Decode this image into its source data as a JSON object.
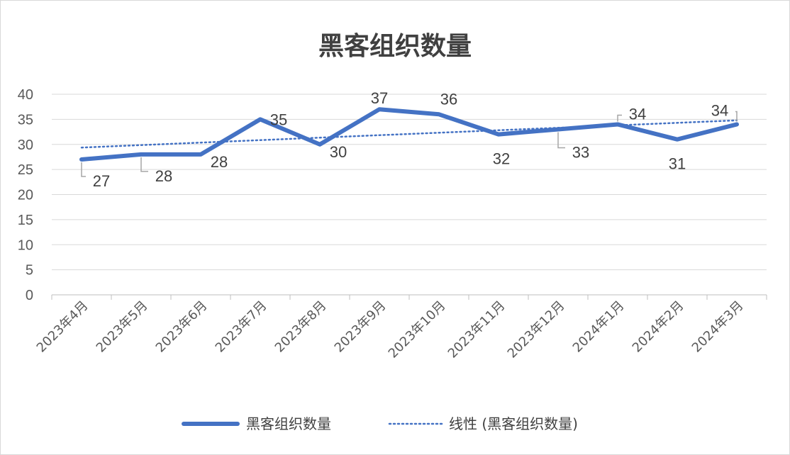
{
  "chart_data": {
    "type": "line",
    "title": "黑客组织数量",
    "categories": [
      "2023年4月",
      "2023年5月",
      "2023年6月",
      "2023年7月",
      "2023年8月",
      "2023年9月",
      "2023年10月",
      "2023年11月",
      "2023年12月",
      "2024年1月",
      "2024年2月",
      "2024年3月"
    ],
    "series": [
      {
        "name": "黑客组织数量",
        "values": [
          27,
          28,
          28,
          35,
          30,
          37,
          36,
          32,
          33,
          34,
          31,
          34
        ],
        "color": "#4472c4"
      }
    ],
    "trendline": {
      "name": "线性 (黑客组织数量)",
      "type": "linear",
      "color": "#4472c4"
    },
    "yticks": [
      "0",
      "5",
      "10",
      "15",
      "20",
      "25",
      "30",
      "35",
      "40"
    ],
    "ylim": [
      0,
      40
    ],
    "xlabel": "",
    "ylabel": "",
    "grid": true,
    "legend": "bottom",
    "data_labels": true
  }
}
